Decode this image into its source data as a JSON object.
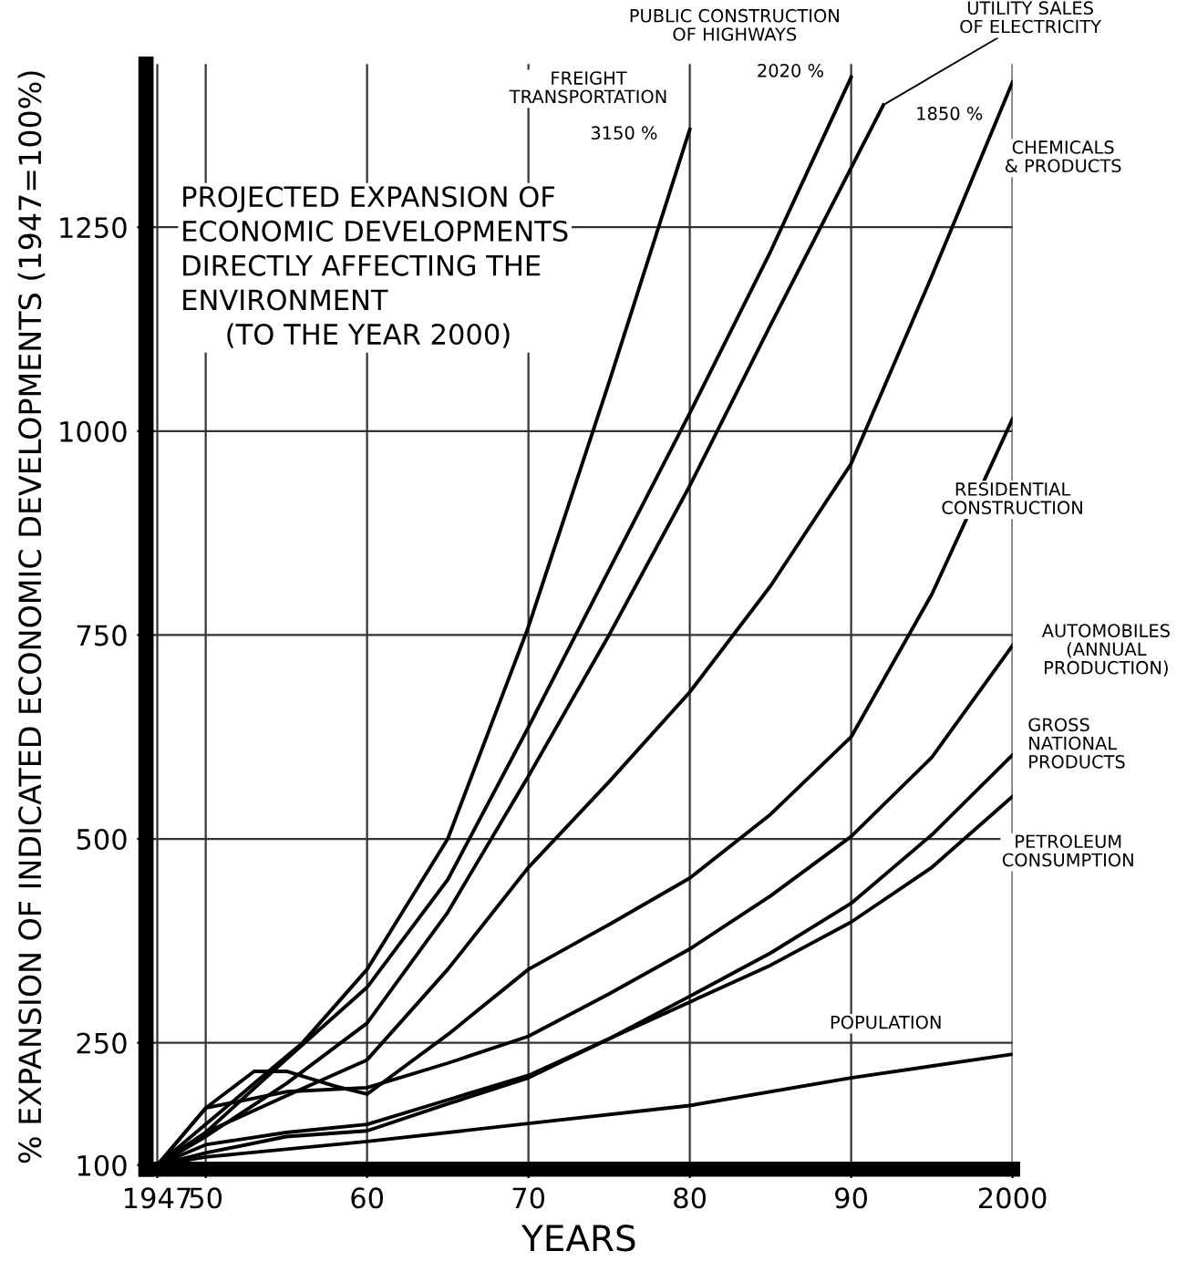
{
  "chart_data": {
    "type": "line",
    "title": "PROJECTED EXPANSION OF\nECONOMIC DEVELOPMENTS\nDIRECTLY AFFECTING THE\nENVIRONMENT\n     (TO THE YEAR 2000)",
    "xlabel": "YEARS",
    "ylabel": "% EXPANSION OF INDICATED ECONOMIC DEVELOPMENTS (1947=100%)",
    "xlim": [
      1946.3,
      2000
    ],
    "ylim": [
      95,
      1450
    ],
    "xticks": [
      {
        "value": 1947,
        "label": "1947"
      },
      {
        "value": 1950,
        "label": "50"
      },
      {
        "value": 1960,
        "label": "60"
      },
      {
        "value": 1970,
        "label": "70"
      },
      {
        "value": 1980,
        "label": "80"
      },
      {
        "value": 1990,
        "label": "90"
      },
      2000
    ],
    "yticks": [
      100,
      250,
      500,
      750,
      1000,
      1250
    ],
    "grid": true,
    "legend": false,
    "marker": "none",
    "line_style": "solid",
    "series": [
      {
        "name": "FREIGHT\nTRANSPORTATION",
        "color": "#000000",
        "x": [
          1947,
          1950,
          1953,
          1956,
          1960,
          1965,
          1970,
          1975,
          1980
        ],
        "values": [
          100,
          150,
          200,
          250,
          340,
          500,
          760,
          1060,
          1370
        ]
      },
      {
        "name": "PUBLIC CONSTRUCTION\nOF HIGHWAYS",
        "color": "#000000",
        "x": [
          1947,
          1950,
          1955,
          1960,
          1965,
          1970,
          1975,
          1980,
          1985,
          1990
        ],
        "values": [
          100,
          140,
          230,
          318,
          450,
          637,
          830,
          1022,
          1220,
          1434
        ]
      },
      {
        "name": "UTILITY SALES\nOF ELECTRICITY",
        "color": "#000000",
        "x": [
          1947,
          1950,
          1955,
          1960,
          1965,
          1970,
          1975,
          1980,
          1985,
          1992
        ],
        "values": [
          100,
          135,
          200,
          274,
          410,
          577,
          750,
          933,
          1130,
          1400
        ]
      },
      {
        "name": "CHEMICALS\n& PRODUCTS",
        "color": "#000000",
        "x": [
          1947,
          1950,
          1955,
          1960,
          1965,
          1970,
          1975,
          1980,
          1985,
          1990,
          1995,
          2000
        ],
        "values": [
          100,
          140,
          185,
          229,
          340,
          465,
          570,
          680,
          810,
          960,
          1190,
          1428
        ]
      },
      {
        "name": "RESIDENTIAL\nCONSTRUCTION",
        "color": "#000000",
        "x": [
          1947,
          1950,
          1953,
          1955,
          1958,
          1960,
          1965,
          1970,
          1975,
          1980,
          1985,
          1990,
          1995,
          2000
        ],
        "values": [
          100,
          170,
          215,
          215,
          197,
          187,
          260,
          340,
          395,
          452,
          530,
          625,
          800,
          1015
        ]
      },
      {
        "name": "AUTOMOBILES\n(ANNUAL\nPRODUCTION)",
        "color": "#000000",
        "x": [
          1947,
          1950,
          1955,
          1960,
          1965,
          1970,
          1975,
          1980,
          1985,
          1990,
          1995,
          2000
        ],
        "values": [
          100,
          170,
          190,
          195,
          225,
          258,
          310,
          365,
          430,
          503,
          600,
          737
        ]
      },
      {
        "name": "GROSS\nNATIONAL\nPRODUCTS",
        "color": "#000000",
        "x": [
          1947,
          1950,
          1955,
          1960,
          1965,
          1970,
          1975,
          1980,
          1985,
          1990,
          1995,
          2000
        ],
        "values": [
          100,
          115,
          135,
          142,
          175,
          207,
          255,
          307,
          360,
          421,
          505,
          603
        ]
      },
      {
        "name": "PETROLEUM\nCONSUMPTION",
        "color": "#000000",
        "x": [
          1947,
          1950,
          1955,
          1960,
          1965,
          1970,
          1975,
          1980,
          1985,
          1990,
          1995,
          2000
        ],
        "values": [
          100,
          125,
          140,
          150,
          180,
          210,
          255,
          300,
          345,
          398,
          465,
          552
        ]
      },
      {
        "name": "POPULATION",
        "color": "#000000",
        "x": [
          1947,
          1950,
          1960,
          1970,
          1980,
          1990,
          2000
        ],
        "values": [
          100,
          110,
          129,
          151,
          173,
          207,
          236
        ]
      }
    ],
    "annotations": [
      {
        "text": "3150 %",
        "x": 1980,
        "y": 1370
      },
      {
        "text": "2020 %",
        "x": 1990,
        "y": 1434
      },
      {
        "text": "1850 %",
        "x": 1992,
        "y": 1400
      }
    ]
  }
}
